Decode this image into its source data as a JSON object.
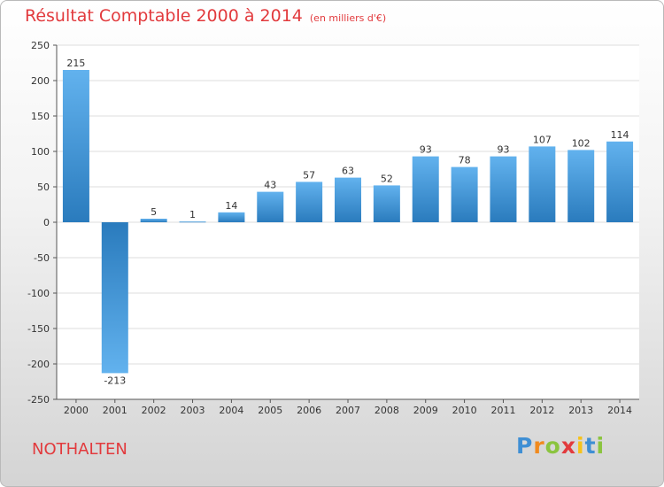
{
  "title": "Résultat Comptable 2000 à 2014",
  "unit": "(en milliers d'€)",
  "town": "NOTHALTEN",
  "logo": {
    "letters": [
      "P",
      "r",
      "o",
      "x",
      "i",
      "t",
      "i"
    ],
    "colors": [
      "#3f8fd4",
      "#f08a1e",
      "#8bc43f",
      "#e23a3d",
      "#f6c21a",
      "#3f8fd4",
      "#8bc43f"
    ]
  },
  "colors": {
    "bar_top": "#62b2ee",
    "bar_bottom": "#2a7bbd",
    "title": "#e23a3d",
    "grid": "#dddddd"
  },
  "chart_data": {
    "type": "bar",
    "title": "Résultat Comptable 2000 à 2014",
    "xlabel": "",
    "ylabel": "",
    "categories": [
      "2000",
      "2001",
      "2002",
      "2003",
      "2004",
      "2005",
      "2006",
      "2007",
      "2008",
      "2009",
      "2010",
      "2011",
      "2012",
      "2013",
      "2014"
    ],
    "values": [
      215,
      -213,
      5,
      1,
      14,
      43,
      57,
      63,
      52,
      93,
      78,
      93,
      107,
      102,
      114
    ],
    "ylim": [
      -250,
      250
    ],
    "yticks": [
      250,
      200,
      150,
      100,
      50,
      0,
      -50,
      -100,
      -150,
      -200,
      -250
    ],
    "ytick_labels": [
      "250",
      "200",
      "150",
      "100",
      "50",
      "0",
      "-50",
      "-100",
      "-150",
      "-200",
      "-250"
    ],
    "grid": true
  }
}
